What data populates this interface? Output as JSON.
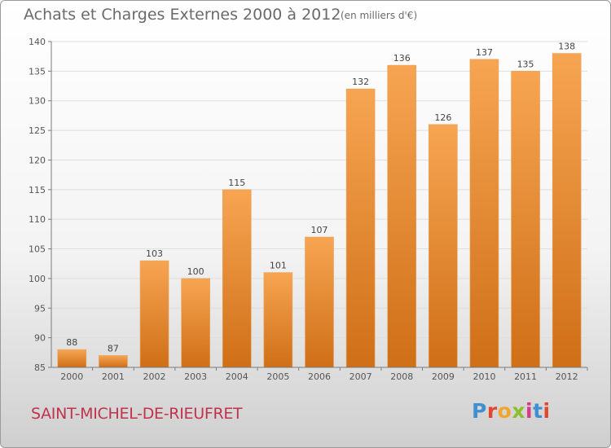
{
  "title": "Achats et Charges Externes 2000 à 2012",
  "subtitle": "(en milliers d'€)",
  "town": "SAINT-MICHEL-DE-RIEUFRET",
  "logo": {
    "letters": [
      "P",
      "r",
      "o",
      "x",
      "i",
      "t",
      "i"
    ]
  },
  "colors": {
    "bar_light": "#f7a552",
    "bar_dark": "#cf6f17",
    "axis": "#7a7a7a",
    "grid": "#dedede"
  },
  "chart_data": {
    "type": "bar",
    "categories": [
      "2000",
      "2001",
      "2002",
      "2003",
      "2004",
      "2005",
      "2006",
      "2007",
      "2008",
      "2009",
      "2010",
      "2011",
      "2012"
    ],
    "values": [
      88,
      87,
      103,
      100,
      115,
      101,
      107,
      132,
      136,
      126,
      137,
      135,
      138
    ],
    "ylim": [
      85,
      140
    ],
    "yticks": [
      85,
      90,
      95,
      100,
      105,
      110,
      115,
      120,
      125,
      130,
      135,
      140
    ],
    "grid": true,
    "title": "Achats et Charges Externes 2000 à 2012",
    "xlabel": "",
    "ylabel": ""
  }
}
